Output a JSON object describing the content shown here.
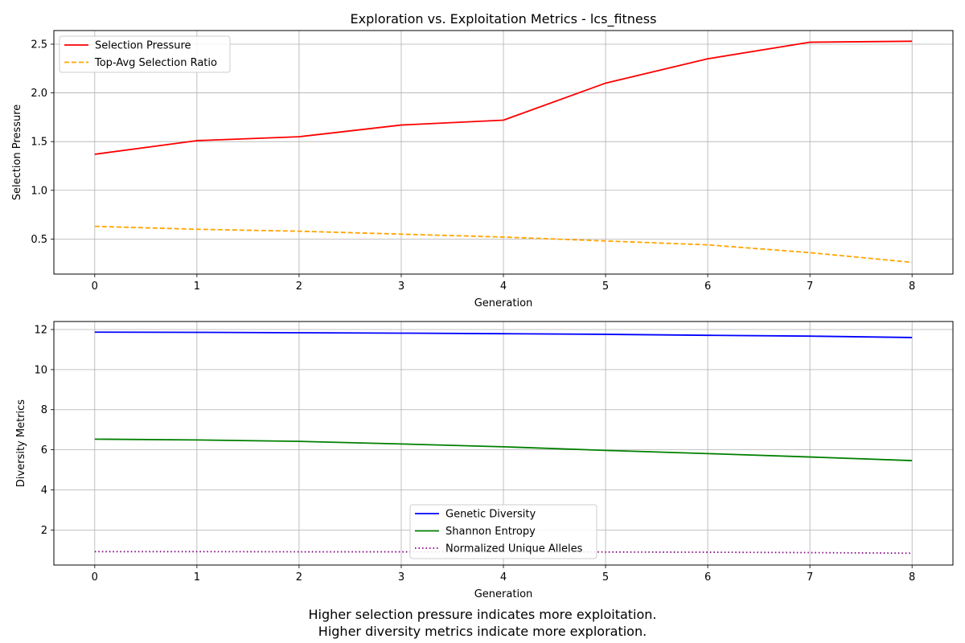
{
  "figure_title": "Exploration vs. Exploitation Metrics - lcs_fitness",
  "caption": {
    "line1": "Higher selection pressure indicates more exploitation.",
    "line2": "Higher diversity metrics indicate more exploration."
  },
  "chart_data": [
    {
      "type": "line",
      "title": "Exploration vs. Exploitation Metrics - lcs_fitness",
      "xlabel": "Generation",
      "ylabel": "Selection Pressure",
      "x": [
        0,
        1,
        2,
        3,
        4,
        5,
        6,
        7,
        8
      ],
      "xlim": [
        -0.4,
        8.4
      ],
      "ylim": [
        0.14,
        2.64
      ],
      "xticks": [
        0,
        1,
        2,
        3,
        4,
        5,
        6,
        7,
        8
      ],
      "yticks": [
        0.5,
        1.0,
        1.5,
        2.0,
        2.5
      ],
      "ytick_labels": [
        "0.5",
        "1.0",
        "1.5",
        "2.0",
        "2.5"
      ],
      "grid": true,
      "legend_position": "top-left",
      "series": [
        {
          "name": "Selection Pressure",
          "color": "#ff0000",
          "style": "solid",
          "values": [
            1.37,
            1.51,
            1.55,
            1.67,
            1.72,
            2.1,
            2.35,
            2.52,
            2.53
          ]
        },
        {
          "name": "Top-Avg Selection Ratio",
          "color": "#ffa500",
          "style": "dashed",
          "values": [
            0.63,
            0.6,
            0.58,
            0.55,
            0.52,
            0.48,
            0.44,
            0.36,
            0.26
          ]
        }
      ]
    },
    {
      "type": "line",
      "title": "",
      "xlabel": "Generation",
      "ylabel": "Diversity Metrics",
      "x": [
        0,
        1,
        2,
        3,
        4,
        5,
        6,
        7,
        8
      ],
      "xlim": [
        -0.4,
        8.4
      ],
      "ylim": [
        0.25,
        12.4
      ],
      "xticks": [
        0,
        1,
        2,
        3,
        4,
        5,
        6,
        7,
        8
      ],
      "yticks": [
        2,
        4,
        6,
        8,
        10,
        12
      ],
      "ytick_labels": [
        "2",
        "4",
        "6",
        "8",
        "10",
        "12"
      ],
      "grid": true,
      "legend_position": "lower-center",
      "series": [
        {
          "name": "Genetic Diversity",
          "color": "#0000ff",
          "style": "solid",
          "values": [
            11.87,
            11.86,
            11.84,
            11.82,
            11.79,
            11.76,
            11.71,
            11.67,
            11.6
          ]
        },
        {
          "name": "Shannon Entropy",
          "color": "#008000",
          "style": "solid",
          "values": [
            6.53,
            6.49,
            6.42,
            6.29,
            6.15,
            5.97,
            5.81,
            5.64,
            5.46
          ]
        },
        {
          "name": "Normalized Unique Alleles",
          "color": "#800080",
          "style": "dotted",
          "values": [
            0.92,
            0.92,
            0.91,
            0.91,
            0.91,
            0.9,
            0.89,
            0.87,
            0.84
          ]
        }
      ]
    }
  ]
}
